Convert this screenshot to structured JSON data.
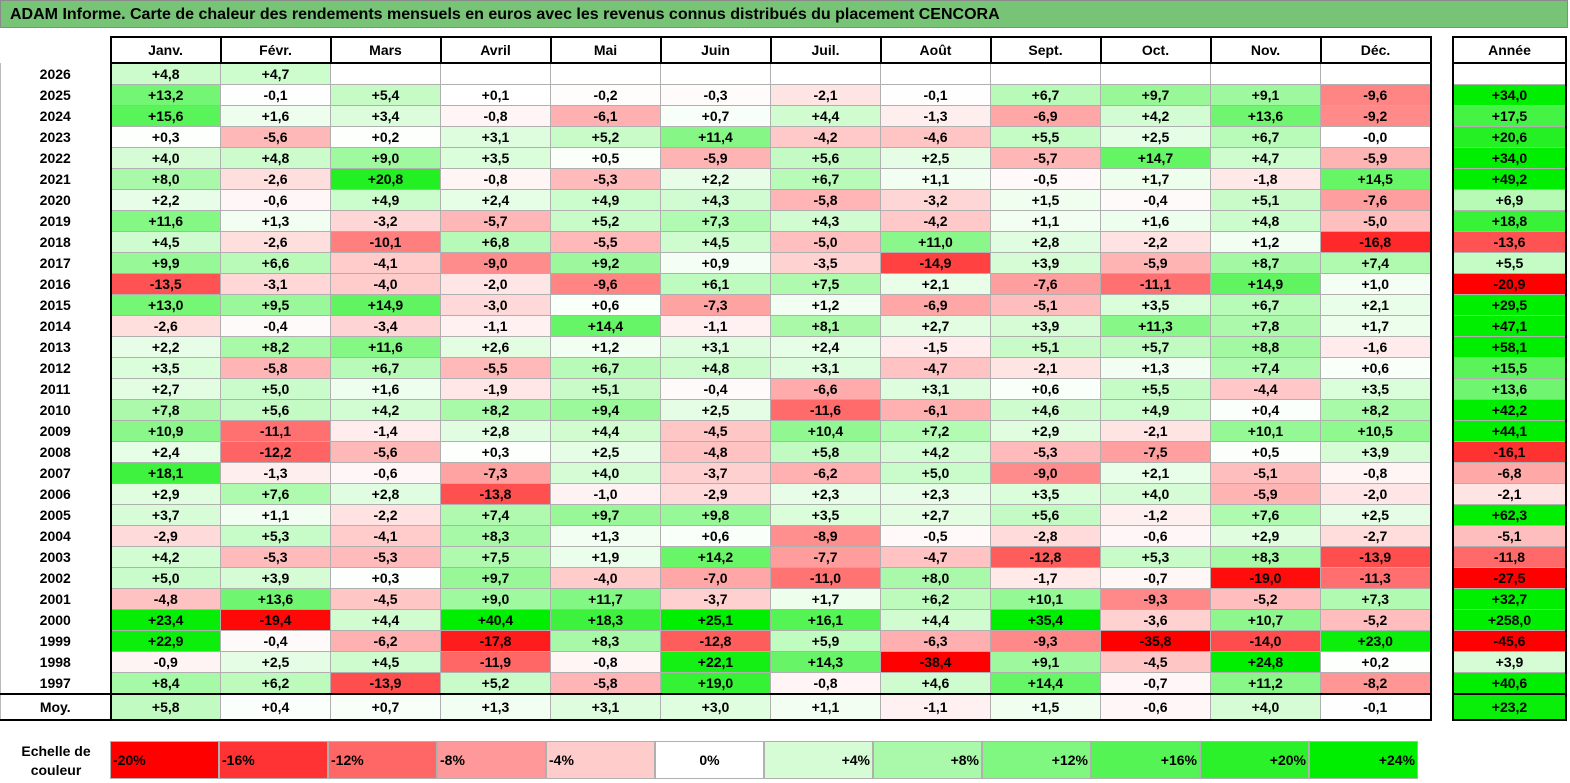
{
  "title": "ADAM Informe. Carte de chaleur des rendements mensuels en euros avec les revenus connus distribués du placement CENCORA",
  "chart_data": {
    "type": "heatmap",
    "columns": [
      "Janv.",
      "Févr.",
      "Mars",
      "Avril",
      "Mai",
      "Juin",
      "Juil.",
      "Août",
      "Sept.",
      "Oct.",
      "Nov.",
      "Déc."
    ],
    "year_column": "Année",
    "rows": [
      {
        "year": "2026",
        "values": [
          "+4,8",
          "+4,7",
          "",
          "",
          "",
          "",
          "",
          "",
          "",
          "",
          "",
          ""
        ],
        "annual": ""
      },
      {
        "year": "2025",
        "values": [
          "+13,2",
          "-0,1",
          "+5,4",
          "+0,1",
          "-0,2",
          "-0,3",
          "-2,1",
          "-0,1",
          "+6,7",
          "+9,7",
          "+9,1",
          "-9,6"
        ],
        "annual": "+34,0"
      },
      {
        "year": "2024",
        "values": [
          "+15,6",
          "+1,6",
          "+3,4",
          "-0,8",
          "-6,1",
          "+0,7",
          "+4,4",
          "-1,3",
          "-6,9",
          "+4,2",
          "+13,6",
          "-9,2"
        ],
        "annual": "+17,5"
      },
      {
        "year": "2023",
        "values": [
          "+0,3",
          "-5,6",
          "+0,2",
          "+3,1",
          "+5,2",
          "+11,4",
          "-4,2",
          "-4,6",
          "+5,5",
          "+2,5",
          "+6,7",
          "-0,0"
        ],
        "annual": "+20,6"
      },
      {
        "year": "2022",
        "values": [
          "+4,0",
          "+4,8",
          "+9,0",
          "+3,5",
          "+0,5",
          "-5,9",
          "+5,6",
          "+2,5",
          "-5,7",
          "+14,7",
          "+4,7",
          "-5,9"
        ],
        "annual": "+34,0"
      },
      {
        "year": "2021",
        "values": [
          "+8,0",
          "-2,6",
          "+20,8",
          "-0,8",
          "-5,3",
          "+2,2",
          "+6,7",
          "+1,1",
          "-0,5",
          "+1,7",
          "-1,8",
          "+14,5"
        ],
        "annual": "+49,2"
      },
      {
        "year": "2020",
        "values": [
          "+2,2",
          "-0,6",
          "+4,9",
          "+2,4",
          "+4,9",
          "+4,3",
          "-5,8",
          "-3,2",
          "+1,5",
          "-0,4",
          "+5,1",
          "-7,6"
        ],
        "annual": "+6,9"
      },
      {
        "year": "2019",
        "values": [
          "+11,6",
          "+1,3",
          "-3,2",
          "-5,7",
          "+5,2",
          "+7,3",
          "+4,3",
          "-4,2",
          "+1,1",
          "+1,6",
          "+4,8",
          "-5,0"
        ],
        "annual": "+18,8"
      },
      {
        "year": "2018",
        "values": [
          "+4,5",
          "-2,6",
          "-10,1",
          "+6,8",
          "-5,5",
          "+4,5",
          "-5,0",
          "+11,0",
          "+2,8",
          "-2,2",
          "+1,2",
          "-16,8"
        ],
        "annual": "-13,6"
      },
      {
        "year": "2017",
        "values": [
          "+9,9",
          "+6,6",
          "-4,1",
          "-9,0",
          "+9,2",
          "+0,9",
          "-3,5",
          "-14,9",
          "+3,9",
          "-5,9",
          "+8,7",
          "+7,4"
        ],
        "annual": "+5,5"
      },
      {
        "year": "2016",
        "values": [
          "-13,5",
          "-3,1",
          "-4,0",
          "-2,0",
          "-9,6",
          "+6,1",
          "+7,5",
          "+2,1",
          "-7,6",
          "-11,1",
          "+14,9",
          "+1,0"
        ],
        "annual": "-20,9"
      },
      {
        "year": "2015",
        "values": [
          "+13,0",
          "+9,5",
          "+14,9",
          "-3,0",
          "+0,6",
          "-7,3",
          "+1,2",
          "-6,9",
          "-5,1",
          "+3,5",
          "+6,7",
          "+2,1"
        ],
        "annual": "+29,5"
      },
      {
        "year": "2014",
        "values": [
          "-2,6",
          "-0,4",
          "-3,4",
          "-1,1",
          "+14,4",
          "-1,1",
          "+8,1",
          "+2,7",
          "+3,9",
          "+11,3",
          "+7,8",
          "+1,7"
        ],
        "annual": "+47,1"
      },
      {
        "year": "2013",
        "values": [
          "+2,2",
          "+8,2",
          "+11,6",
          "+2,6",
          "+1,2",
          "+3,1",
          "+2,4",
          "-1,5",
          "+5,1",
          "+5,7",
          "+8,8",
          "-1,6"
        ],
        "annual": "+58,1"
      },
      {
        "year": "2012",
        "values": [
          "+3,5",
          "-5,8",
          "+6,7",
          "-5,5",
          "+6,7",
          "+4,8",
          "+3,1",
          "-4,7",
          "-2,1",
          "+1,3",
          "+7,4",
          "+0,6"
        ],
        "annual": "+15,5"
      },
      {
        "year": "2011",
        "values": [
          "+2,7",
          "+5,0",
          "+1,6",
          "-1,9",
          "+5,1",
          "-0,4",
          "-6,6",
          "+3,1",
          "+0,6",
          "+5,5",
          "-4,4",
          "+3,5"
        ],
        "annual": "+13,6"
      },
      {
        "year": "2010",
        "values": [
          "+7,8",
          "+5,6",
          "+4,2",
          "+8,2",
          "+9,4",
          "+2,5",
          "-11,6",
          "-6,1",
          "+4,6",
          "+4,9",
          "+0,4",
          "+8,2"
        ],
        "annual": "+42,2"
      },
      {
        "year": "2009",
        "values": [
          "+10,9",
          "-11,1",
          "-1,4",
          "+2,8",
          "+4,4",
          "-4,5",
          "+10,4",
          "+7,2",
          "+2,9",
          "-2,1",
          "+10,1",
          "+10,5"
        ],
        "annual": "+44,1"
      },
      {
        "year": "2008",
        "values": [
          "+2,4",
          "-12,2",
          "-5,6",
          "+0,3",
          "+2,5",
          "-4,8",
          "+5,8",
          "+4,2",
          "-5,3",
          "-7,5",
          "+0,5",
          "+3,9"
        ],
        "annual": "-16,1"
      },
      {
        "year": "2007",
        "values": [
          "+18,1",
          "-1,3",
          "-0,6",
          "-7,3",
          "+4,0",
          "-3,7",
          "-6,2",
          "+5,0",
          "-9,0",
          "+2,1",
          "-5,1",
          "-0,8"
        ],
        "annual": "-6,8"
      },
      {
        "year": "2006",
        "values": [
          "+2,9",
          "+7,6",
          "+2,8",
          "-13,8",
          "-1,0",
          "-2,9",
          "+2,3",
          "+2,3",
          "+3,5",
          "+4,0",
          "-5,9",
          "-2,0"
        ],
        "annual": "-2,1"
      },
      {
        "year": "2005",
        "values": [
          "+3,7",
          "+1,1",
          "-2,2",
          "+7,4",
          "+9,7",
          "+9,8",
          "+3,5",
          "+2,7",
          "+5,6",
          "-1,2",
          "+7,6",
          "+2,5"
        ],
        "annual": "+62,3"
      },
      {
        "year": "2004",
        "values": [
          "-2,9",
          "+5,3",
          "-4,1",
          "+8,3",
          "+1,3",
          "+0,6",
          "-8,9",
          "-0,5",
          "-2,8",
          "-0,6",
          "+2,9",
          "-2,7"
        ],
        "annual": "-5,1"
      },
      {
        "year": "2003",
        "values": [
          "+4,2",
          "-5,3",
          "-5,3",
          "+7,5",
          "+1,9",
          "+14,2",
          "-7,7",
          "-4,7",
          "-12,8",
          "+5,3",
          "+8,3",
          "-13,9"
        ],
        "annual": "-11,8"
      },
      {
        "year": "2002",
        "values": [
          "+5,0",
          "+3,9",
          "+0,3",
          "+9,7",
          "-4,0",
          "-7,0",
          "-11,0",
          "+8,0",
          "-1,7",
          "-0,7",
          "-19,0",
          "-11,3"
        ],
        "annual": "-27,5"
      },
      {
        "year": "2001",
        "values": [
          "-4,8",
          "+13,6",
          "-4,5",
          "+9,0",
          "+11,7",
          "-3,7",
          "+1,7",
          "+6,2",
          "+10,1",
          "-9,3",
          "-5,2",
          "+7,3"
        ],
        "annual": "+32,7"
      },
      {
        "year": "2000",
        "values": [
          "+23,4",
          "-19,4",
          "+4,4",
          "+40,4",
          "+18,3",
          "+25,1",
          "+16,1",
          "+4,4",
          "+35,4",
          "-3,6",
          "+10,7",
          "-5,2"
        ],
        "annual": "+258,0"
      },
      {
        "year": "1999",
        "values": [
          "+22,9",
          "-0,4",
          "-6,2",
          "-17,8",
          "+8,3",
          "-12,8",
          "+5,9",
          "-6,3",
          "-9,3",
          "-35,8",
          "-14,0",
          "+23,0"
        ],
        "annual": "-45,6"
      },
      {
        "year": "1998",
        "values": [
          "-0,9",
          "+2,5",
          "+4,5",
          "-11,9",
          "-0,8",
          "+22,1",
          "+14,3",
          "-38,4",
          "+9,1",
          "-4,5",
          "+24,8",
          "+0,2"
        ],
        "annual": "+3,9"
      },
      {
        "year": "1997",
        "values": [
          "+8,4",
          "+6,2",
          "-13,9",
          "+5,2",
          "-5,8",
          "+19,0",
          "-0,8",
          "+4,6",
          "+14,4",
          "-0,7",
          "+11,2",
          "-8,2"
        ],
        "annual": "+40,6"
      }
    ],
    "average": {
      "label": "Moy.",
      "values": [
        "+5,8",
        "+0,4",
        "+0,7",
        "+1,3",
        "+3,1",
        "+3,0",
        "+1,1",
        "-1,1",
        "+1,5",
        "-0,6",
        "+4,0",
        "-0,1"
      ],
      "annual": "+23,2"
    },
    "scale_label": "Echelle de couleur",
    "scale": [
      {
        "label": "-20%",
        "value": -20
      },
      {
        "label": "-16%",
        "value": -16
      },
      {
        "label": "-12%",
        "value": -12
      },
      {
        "label": "-8%",
        "value": -8
      },
      {
        "label": "-4%",
        "value": -4
      },
      {
        "label": "0%",
        "value": 0
      },
      {
        "label": "+4%",
        "value": 4
      },
      {
        "label": "+8%",
        "value": 8
      },
      {
        "label": "+12%",
        "value": 12
      },
      {
        "label": "+16%",
        "value": 16
      },
      {
        "label": "+20%",
        "value": 20
      },
      {
        "label": "+24%",
        "value": 24
      }
    ],
    "colors": {
      "negative_max": "#ff0000",
      "neutral": "#ffffff",
      "positive_max": "#00ee00"
    }
  }
}
